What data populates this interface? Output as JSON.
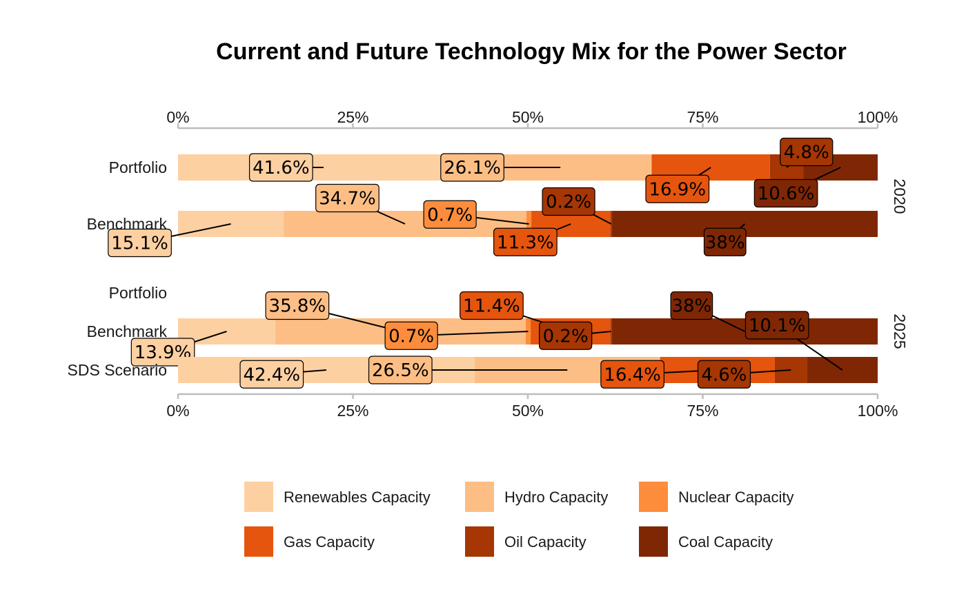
{
  "chart_data": {
    "type": "bar",
    "orientation": "horizontal-stacked",
    "title": "Current and Future Technology Mix for the Power Sector",
    "xlabel": "",
    "ylabel": "",
    "xlim": [
      0,
      100
    ],
    "x_ticks": [
      "0%",
      "25%",
      "50%",
      "75%",
      "100%"
    ],
    "x_axis_position": "top and bottom",
    "grid": false,
    "legend_position": "bottom",
    "categories_order": [
      "Renewables Capacity",
      "Hydro Capacity",
      "Nuclear Capacity",
      "Gas Capacity",
      "Oil Capacity",
      "Coal Capacity"
    ],
    "colors": {
      "Renewables Capacity": "#fdd0a2",
      "Hydro Capacity": "#fdbe85",
      "Nuclear Capacity": "#fd8d3c",
      "Gas Capacity": "#e6550d",
      "Oil Capacity": "#a63603",
      "Coal Capacity": "#7f2704"
    },
    "facets": [
      {
        "name": "2020",
        "rows": [
          {
            "name": "Portfolio",
            "values": [
              41.6,
              26.1,
              0,
              16.9,
              4.8,
              10.6
            ],
            "labels": [
              "41.6%",
              "26.1%",
              "",
              "16.9%",
              "4.8%",
              "10.6%"
            ]
          },
          {
            "name": "Benchmark",
            "values": [
              15.1,
              34.7,
              0.7,
              11.3,
              0.2,
              38
            ],
            "labels": [
              "15.1%",
              "34.7%",
              "0.7%",
              "11.3%",
              "0.2%",
              "38%"
            ]
          }
        ]
      },
      {
        "name": "2025",
        "rows": [
          {
            "name": "Portfolio",
            "values": [
              0,
              0,
              0,
              0,
              0,
              0
            ],
            "labels": [
              "",
              "",
              "",
              "",
              "",
              ""
            ]
          },
          {
            "name": "Benchmark",
            "values": [
              13.9,
              35.8,
              0.7,
              11.4,
              0.2,
              38
            ],
            "labels": [
              "13.9%",
              "35.8%",
              "0.7%",
              "11.4%",
              "0.2%",
              "38%"
            ]
          },
          {
            "name": "SDS Scenario",
            "values": [
              42.4,
              26.5,
              0,
              16.4,
              4.6,
              10.1
            ],
            "labels": [
              "42.4%",
              "26.5%",
              "",
              "16.4%",
              "4.6%",
              "10.1%"
            ]
          }
        ]
      }
    ]
  }
}
